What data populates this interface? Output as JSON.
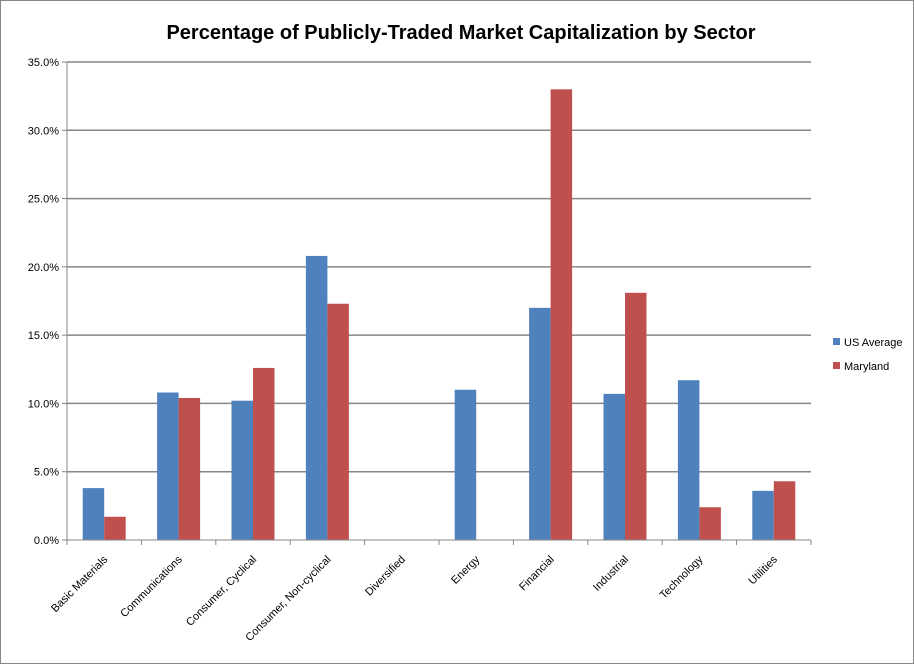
{
  "chart_data": {
    "type": "bar",
    "title": "Percentage of Publicly-Traded Market Capitalization by Sector",
    "xlabel": "",
    "ylabel": "",
    "ylim": [
      0,
      35
    ],
    "yticks": [
      "0.0%",
      "5.0%",
      "10.0%",
      "15.0%",
      "20.0%",
      "25.0%",
      "30.0%",
      "35.0%"
    ],
    "grid": true,
    "legend_position": "right",
    "categories": [
      "Basic Materials",
      "Communications",
      "Consumer, Cyclical",
      "Consumer, Non-cyclical",
      "Diversified",
      "Energy",
      "Financial",
      "Industrial",
      "Technology",
      "Utilities"
    ],
    "series": [
      {
        "name": "US Average",
        "color": "#4F81BD",
        "values": [
          3.8,
          10.8,
          10.2,
          20.8,
          0,
          11.0,
          17.0,
          10.7,
          11.7,
          3.6
        ]
      },
      {
        "name": "Maryland",
        "color": "#C0504D",
        "values": [
          1.7,
          10.4,
          12.6,
          17.3,
          0,
          0,
          33.0,
          18.1,
          2.4,
          4.3
        ]
      }
    ]
  }
}
